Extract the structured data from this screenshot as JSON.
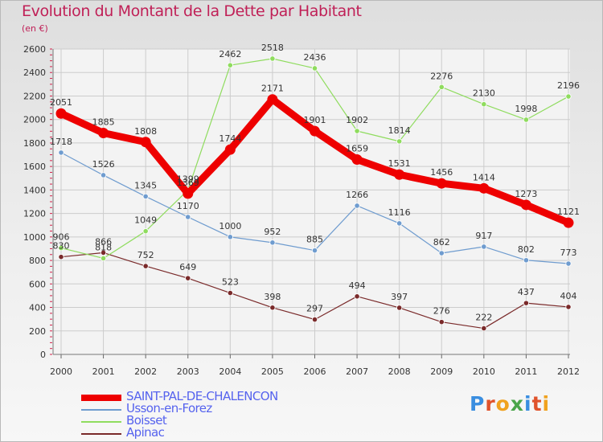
{
  "title": "Evolution du Montant de la Dette par Habitant",
  "subtitle": "(en €)",
  "brand": "Proxiti",
  "brand_colors": [
    "#3a8ee0",
    "#e0522b",
    "#f0a21f",
    "#4aa54a",
    "#3a8ee0",
    "#e0522b",
    "#f0a21f"
  ],
  "chart_data": {
    "type": "line",
    "title": "Evolution du Montant de la Dette par Habitant",
    "subtitle": "(en €)",
    "x": [
      "2000",
      "2001",
      "2002",
      "2003",
      "2004",
      "2005",
      "2006",
      "2007",
      "2008",
      "2009",
      "2010",
      "2011",
      "2012"
    ],
    "ylim": [
      0,
      2600
    ],
    "yticks": [
      0,
      200,
      400,
      600,
      800,
      1000,
      1200,
      1400,
      1600,
      1800,
      2000,
      2200,
      2400,
      2600
    ],
    "grid": true,
    "legend_position": "bottom-left",
    "series": [
      {
        "name": "SAINT-PAL-DE-CHALENCON",
        "color": "#ee0000",
        "values": [
          2051,
          1885,
          1808,
          1369,
          1744,
          2171,
          1901,
          1659,
          1531,
          1456,
          1414,
          1273,
          1121
        ]
      },
      {
        "name": "Usson-en-Forez",
        "color": "#6f9ccf",
        "values": [
          1718,
          1526,
          1345,
          1170,
          1000,
          952,
          885,
          1266,
          1116,
          862,
          917,
          802,
          773
        ]
      },
      {
        "name": "Boisset",
        "color": "#8fdc5e",
        "values": [
          906,
          818,
          1049,
          1399,
          2462,
          2518,
          2436,
          1902,
          1814,
          2276,
          2130,
          1998,
          2196
        ]
      },
      {
        "name": "Apinac",
        "color": "#7a2a2a",
        "values": [
          830,
          866,
          752,
          649,
          523,
          398,
          297,
          494,
          397,
          276,
          222,
          437,
          404
        ]
      }
    ]
  }
}
